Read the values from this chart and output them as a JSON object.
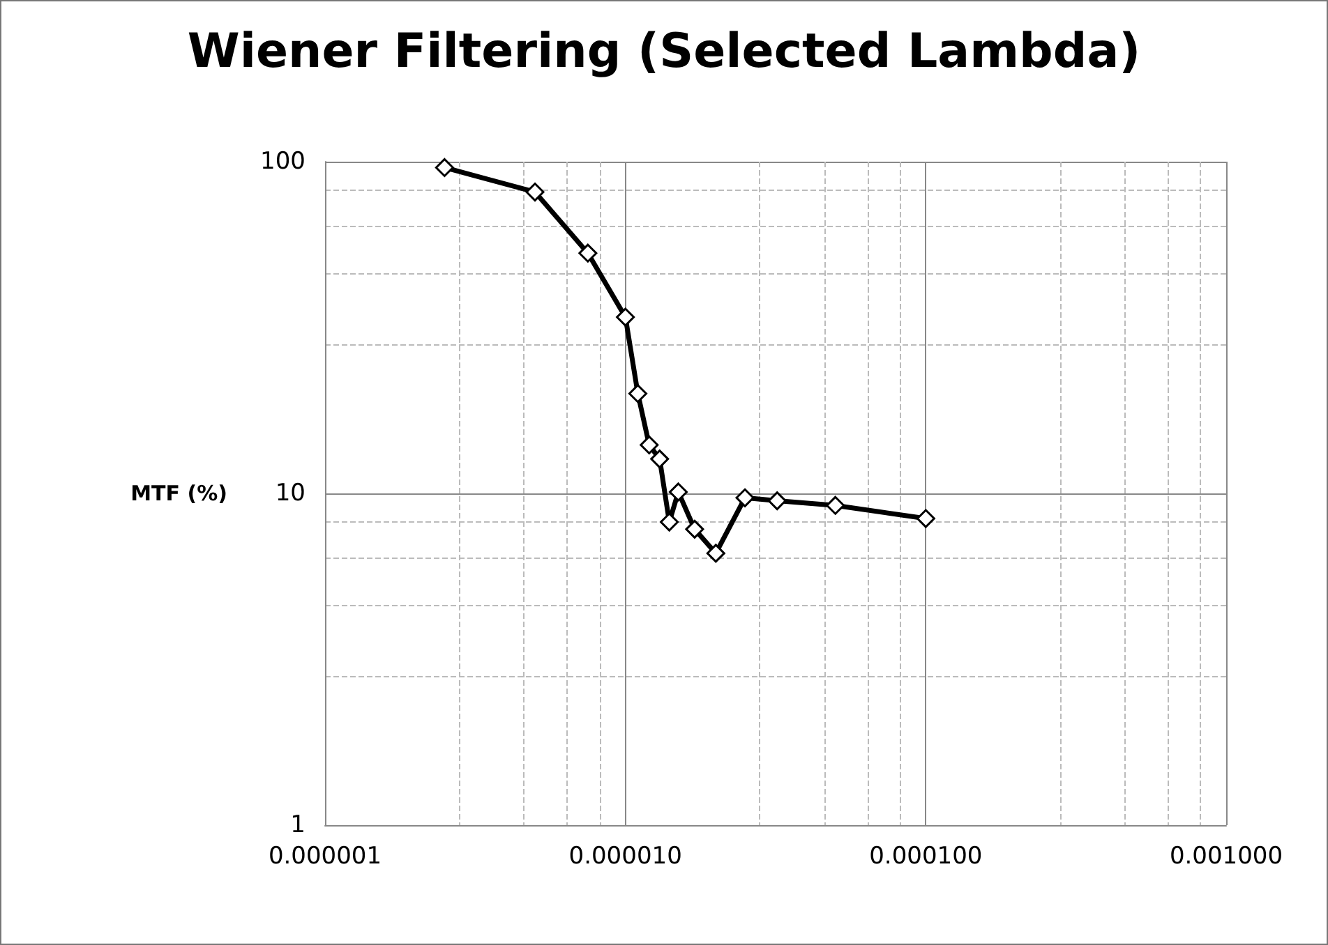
{
  "chart_data": {
    "type": "line",
    "title": "Wiener Filtering (Selected Lambda)",
    "ylabel": "MTF (%)",
    "x": [
      2.5e-06,
      5e-06,
      7.5e-06,
      1e-05,
      1.1e-05,
      1.2e-05,
      1.3e-05,
      1.4e-05,
      1.5e-05,
      1.7e-05,
      2e-05,
      2.5e-05,
      3.2e-05,
      5e-05,
      0.0001
    ],
    "series": [
      {
        "color": "#000000",
        "values": [
          96,
          81,
          53,
          34,
          20,
          14,
          12.7,
          8.2,
          10.1,
          7.8,
          6.6,
          9.7,
          9.5,
          9.2,
          8.4
        ]
      }
    ],
    "log": "xy",
    "xlim": [
      1e-06,
      0.001
    ],
    "ylim": [
      1,
      100
    ],
    "xticks": [
      {
        "value": 1e-06,
        "label": "0.000001"
      },
      {
        "value": 1e-05,
        "label": "0.000010"
      },
      {
        "value": 0.0001,
        "label": "0.000100"
      },
      {
        "value": 0.001,
        "label": "0.001000"
      }
    ],
    "yticks": [
      1,
      10,
      100
    ],
    "grid": true,
    "marker": "diamond",
    "line_style": "solid"
  }
}
